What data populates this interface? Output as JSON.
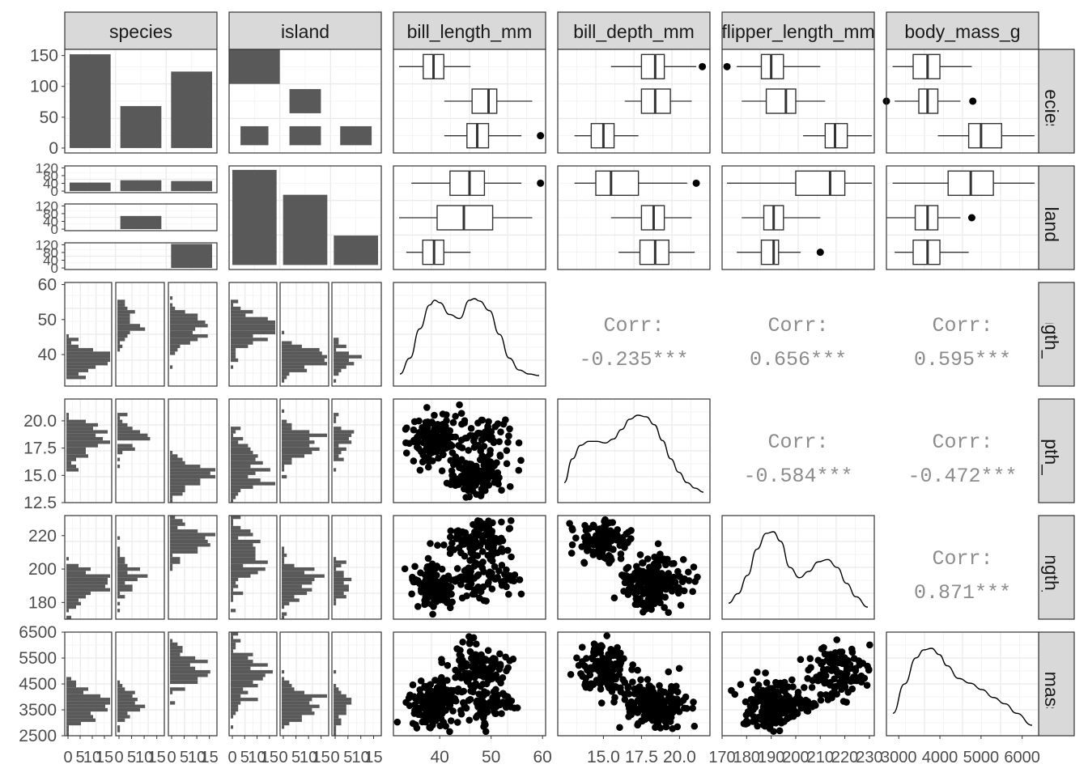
{
  "chart_data": {
    "type": "pairs",
    "variables": [
      "species",
      "island",
      "bill_length_mm",
      "bill_depth_mm",
      "flipper_length_mm",
      "body_mass_g"
    ],
    "strip_colors": {
      "fill": "#d9d9d9",
      "border": "#333333",
      "bars": "#595959",
      "points": "#000000"
    },
    "column_strips": [
      "species",
      "island",
      "bill_length_mm",
      "bill_depth_mm",
      "flipper_length_mm",
      "body_mass_g"
    ],
    "row_strips": [
      "species",
      "island",
      "ill_length_mm",
      "ill_depth_mm",
      "per_length_mm",
      "ody_mass_g"
    ],
    "axis_ticks": {
      "species_counts": [
        "0",
        "50",
        "100",
        "150"
      ],
      "island_counts_small": [
        "0",
        "40",
        "80",
        "120"
      ],
      "bill_length_mm": [
        "40",
        "50",
        "60"
      ],
      "bill_depth_mm": [
        "12.5",
        "15.0",
        "17.5",
        "20.0"
      ],
      "bill_depth_mm_x": [
        "15.0",
        "17.5",
        "20.0"
      ],
      "flipper_length_mm": [
        "180",
        "200",
        "220"
      ],
      "flipper_length_mm_x": [
        "170",
        "180",
        "190",
        "200",
        "210",
        "220",
        "230"
      ],
      "body_mass_g": [
        "2500",
        "3500",
        "4500",
        "5500",
        "6500"
      ],
      "body_mass_g_x": [
        "3000",
        "4000",
        "5000",
        "6000"
      ],
      "hist_count_x": [
        "0",
        "5",
        "10",
        "15"
      ]
    },
    "species_counts": [
      152,
      68,
      124
    ],
    "island_by_species_counts": [
      {
        "species_row": 1,
        "values": [
          44,
          56,
          52
        ]
      },
      {
        "species_row": 2,
        "values": [
          0,
          68,
          0
        ]
      },
      {
        "species_row": 3,
        "values": [
          0,
          0,
          124
        ]
      }
    ],
    "island_counts": [
      168,
      124,
      52
    ],
    "boxplots": {
      "species_vs_bill_length_mm": [
        {
          "q1": 36.8,
          "median": 38.8,
          "q3": 40.8,
          "lo": 32.1,
          "hi": 46.0,
          "outliers": []
        },
        {
          "q1": 46.3,
          "median": 49.5,
          "q3": 51.1,
          "lo": 40.9,
          "hi": 58.0,
          "outliers": []
        },
        {
          "q1": 45.3,
          "median": 47.3,
          "q3": 49.5,
          "lo": 40.9,
          "hi": 55.9,
          "outliers": [
            59.6
          ]
        }
      ],
      "species_vs_bill_depth_mm": [
        {
          "q1": 17.5,
          "median": 18.4,
          "q3": 19.0,
          "lo": 15.5,
          "hi": 21.1,
          "outliers": [
            21.5
          ]
        },
        {
          "q1": 17.5,
          "median": 18.4,
          "q3": 19.4,
          "lo": 16.4,
          "hi": 20.8,
          "outliers": []
        },
        {
          "q1": 14.2,
          "median": 15.0,
          "q3": 15.7,
          "lo": 13.1,
          "hi": 17.3,
          "outliers": []
        }
      ],
      "species_vs_flipper_length_mm": [
        {
          "q1": 186,
          "median": 190,
          "q3": 195,
          "lo": 176,
          "hi": 210,
          "outliers": [
            172
          ]
        },
        {
          "q1": 188,
          "median": 196,
          "q3": 200,
          "lo": 178,
          "hi": 212,
          "outliers": []
        },
        {
          "q1": 212,
          "median": 216,
          "q3": 221,
          "lo": 203,
          "hi": 231,
          "outliers": []
        }
      ],
      "species_vs_body_mass_g": [
        {
          "q1": 3350,
          "median": 3700,
          "q3": 4000,
          "lo": 2850,
          "hi": 4775,
          "outliers": []
        },
        {
          "q1": 3487,
          "median": 3700,
          "q3": 3950,
          "lo": 2900,
          "hi": 4500,
          "outliers": [
            2700,
            4800
          ]
        },
        {
          "q1": 4700,
          "median": 5000,
          "q3": 5500,
          "lo": 3950,
          "hi": 6300,
          "outliers": []
        }
      ],
      "island_vs_bill_length_mm": [
        {
          "q1": 42.0,
          "median": 45.8,
          "q3": 48.7,
          "lo": 34.5,
          "hi": 55.9,
          "outliers": [
            59.6
          ]
        },
        {
          "q1": 39.5,
          "median": 44.7,
          "q3": 50.3,
          "lo": 32.1,
          "hi": 58.0,
          "outliers": []
        },
        {
          "q1": 36.7,
          "median": 38.9,
          "q3": 40.8,
          "lo": 33.5,
          "hi": 46.0,
          "outliers": []
        }
      ],
      "island_vs_bill_depth_mm": [
        {
          "q1": 14.5,
          "median": 15.5,
          "q3": 17.3,
          "lo": 13.1,
          "hi": 20.5,
          "outliers": [
            21.1
          ]
        },
        {
          "q1": 17.5,
          "median": 18.3,
          "q3": 19.0,
          "lo": 15.5,
          "hi": 20.8,
          "outliers": []
        },
        {
          "q1": 17.4,
          "median": 18.4,
          "q3": 19.3,
          "lo": 16.0,
          "hi": 21.0,
          "outliers": []
        }
      ],
      "island_vs_flipper_length_mm": [
        {
          "q1": 200,
          "median": 214,
          "q3": 220,
          "lo": 172,
          "hi": 231,
          "outliers": []
        },
        {
          "q1": 187,
          "median": 191,
          "q3": 195,
          "lo": 178,
          "hi": 210,
          "outliers": []
        },
        {
          "q1": 186,
          "median": 191,
          "q3": 193,
          "lo": 176,
          "hi": 202,
          "outliers": [
            210
          ]
        }
      ],
      "island_vs_body_mass_g": [
        {
          "q1": 4200,
          "median": 4750,
          "q3": 5300,
          "lo": 2850,
          "hi": 6300,
          "outliers": []
        },
        {
          "q1": 3400,
          "median": 3700,
          "q3": 3950,
          "lo": 2700,
          "hi": 4500,
          "outliers": [
            4775
          ]
        },
        {
          "q1": 3350,
          "median": 3700,
          "q3": 4000,
          "lo": 2900,
          "hi": 4700,
          "outliers": []
        }
      ]
    },
    "correlations": [
      {
        "row": "bill_length_mm",
        "col": "bill_depth_mm",
        "label": "Corr:",
        "value": "-0.235***"
      },
      {
        "row": "bill_length_mm",
        "col": "flipper_length_mm",
        "label": "Corr:",
        "value": "0.656***"
      },
      {
        "row": "bill_length_mm",
        "col": "body_mass_g",
        "label": "Corr:",
        "value": "0.595***"
      },
      {
        "row": "bill_depth_mm",
        "col": "flipper_length_mm",
        "label": "Corr:",
        "value": "-0.584***"
      },
      {
        "row": "bill_depth_mm",
        "col": "body_mass_g",
        "label": "Corr:",
        "value": "-0.472***"
      },
      {
        "row": "flipper_length_mm",
        "col": "body_mass_g",
        "label": "Corr:",
        "value": "0.871***"
      }
    ],
    "scatter_clusters": {
      "bill_length_mm_vs_bill_depth_mm": [
        {
          "cx": 38.8,
          "cy": 18.3,
          "sx": 2.4,
          "sy": 1.1,
          "n": 150
        },
        {
          "cx": 47.5,
          "cy": 15.0,
          "sx": 2.8,
          "sy": 0.9,
          "n": 120
        },
        {
          "cx": 49.0,
          "cy": 18.4,
          "sx": 3.0,
          "sy": 1.0,
          "n": 68
        }
      ],
      "bill_length_mm_vs_flipper_length_mm": [
        {
          "cx": 38.8,
          "cy": 190,
          "sx": 2.4,
          "sy": 6,
          "n": 150
        },
        {
          "cx": 47.5,
          "cy": 217,
          "sx": 2.8,
          "sy": 6,
          "n": 120
        },
        {
          "cx": 49.0,
          "cy": 196,
          "sx": 3.0,
          "sy": 7,
          "n": 68
        }
      ],
      "bill_depth_mm_vs_flipper_length_mm": [
        {
          "cx": 18.3,
          "cy": 190,
          "sx": 1.1,
          "sy": 6,
          "n": 150
        },
        {
          "cx": 15.0,
          "cy": 217,
          "sx": 0.9,
          "sy": 6,
          "n": 120
        },
        {
          "cx": 18.4,
          "cy": 196,
          "sx": 1.0,
          "sy": 7,
          "n": 68
        }
      ],
      "bill_length_mm_vs_body_mass_g": [
        {
          "cx": 38.8,
          "cy": 3700,
          "sx": 2.4,
          "sy": 450,
          "n": 150
        },
        {
          "cx": 47.5,
          "cy": 5080,
          "sx": 2.8,
          "sy": 500,
          "n": 120
        },
        {
          "cx": 49.0,
          "cy": 3730,
          "sx": 3.0,
          "sy": 380,
          "n": 68
        }
      ],
      "bill_depth_mm_vs_body_mass_g": [
        {
          "cx": 18.3,
          "cy": 3700,
          "sx": 1.1,
          "sy": 450,
          "n": 150
        },
        {
          "cx": 15.0,
          "cy": 5080,
          "sx": 0.9,
          "sy": 500,
          "n": 120
        },
        {
          "cx": 18.4,
          "cy": 3730,
          "sx": 1.0,
          "sy": 380,
          "n": 68
        }
      ],
      "flipper_length_mm_vs_body_mass_g": [
        {
          "cx": 190,
          "cy": 3700,
          "sx": 6,
          "sy": 450,
          "n": 150
        },
        {
          "cx": 217,
          "cy": 5080,
          "sx": 6,
          "sy": 500,
          "n": 120
        },
        {
          "cx": 196,
          "cy": 3730,
          "sx": 7,
          "sy": 380,
          "n": 68
        }
      ]
    },
    "densities": {
      "bill_length_mm": {
        "x": [
          32,
          34,
          36,
          38,
          39,
          40,
          42,
          44,
          46,
          47,
          48,
          50,
          52,
          54,
          56,
          58,
          60
        ],
        "y": [
          0.05,
          0.25,
          0.62,
          0.92,
          0.98,
          0.95,
          0.8,
          0.75,
          0.98,
          1.0,
          0.97,
          0.85,
          0.55,
          0.25,
          0.1,
          0.05,
          0.03
        ]
      },
      "bill_depth_mm": {
        "x": [
          13,
          13.5,
          14,
          14.5,
          15,
          15.5,
          16,
          16.5,
          17,
          17.5,
          18,
          18.5,
          19,
          19.5,
          20,
          20.5,
          21,
          21.5
        ],
        "y": [
          0.15,
          0.45,
          0.62,
          0.67,
          0.67,
          0.65,
          0.7,
          0.82,
          0.95,
          1.0,
          0.98,
          0.88,
          0.68,
          0.45,
          0.28,
          0.15,
          0.08,
          0.03
        ]
      },
      "flipper_length_mm": {
        "x": [
          172,
          176,
          180,
          184,
          188,
          191,
          194,
          198,
          202,
          206,
          210,
          214,
          218,
          222,
          226,
          231
        ],
        "y": [
          0.1,
          0.22,
          0.45,
          0.78,
          0.98,
          1.0,
          0.88,
          0.55,
          0.42,
          0.5,
          0.62,
          0.65,
          0.55,
          0.35,
          0.18,
          0.05
        ]
      },
      "body_mass_g": {
        "x": [
          2700,
          3000,
          3300,
          3500,
          3700,
          3900,
          4100,
          4400,
          4700,
          5000,
          5300,
          5600,
          5900,
          6300
        ],
        "y": [
          0.18,
          0.55,
          0.88,
          0.98,
          1.0,
          0.92,
          0.78,
          0.62,
          0.56,
          0.48,
          0.38,
          0.3,
          0.18,
          0.03
        ]
      }
    }
  }
}
